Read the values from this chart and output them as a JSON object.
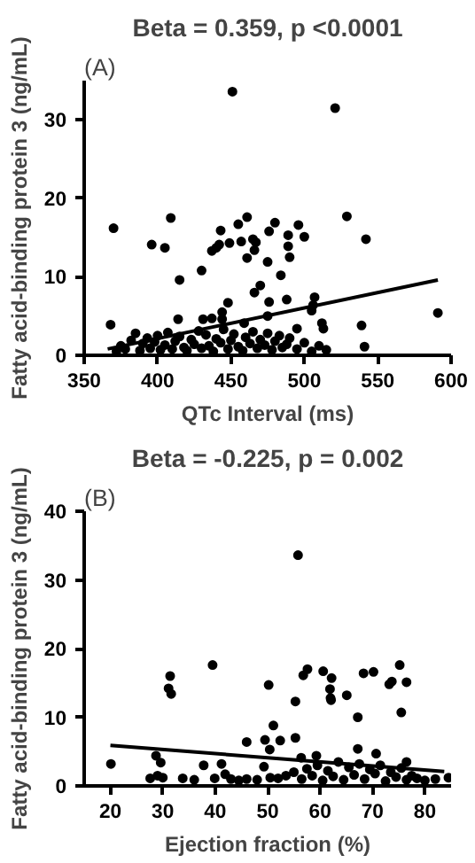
{
  "chart_data": [
    {
      "type": "scatter",
      "title": "Beta = 0.359, p <0.0001",
      "annotations": [
        "(A)"
      ],
      "xlabel": "QTc Interval (ms)",
      "ylabel": "Fatty acid-binding protein 3 (ng/mL)",
      "xlim": [
        350,
        600
      ],
      "ylim": [
        0,
        35
      ],
      "xticks": [
        350,
        400,
        450,
        500,
        550,
        600
      ],
      "yticks": [
        0,
        10,
        20,
        30
      ],
      "grid": false,
      "marker": "circle",
      "series": [
        {
          "color": "#000000",
          "x": [
            451,
            521,
            370,
            409,
            396,
            405,
            415,
            430,
            437,
            440,
            443,
            442,
            449,
            455,
            461,
            457,
            461,
            465,
            467,
            466,
            476,
            480,
            475,
            484,
            489,
            489,
            490,
            496,
            500,
            529,
            542,
            591,
            466,
            470,
            448,
            476,
            488,
            507,
            506,
            505,
            475,
            368,
            539,
            541,
            414,
            431,
            437,
            444,
            444,
            459,
            495,
            512,
            513,
            372,
            375,
            378,
            382,
            385,
            388,
            390,
            393,
            395,
            398,
            400,
            402,
            405,
            407,
            410,
            412,
            415,
            418,
            420,
            423,
            425,
            428,
            430,
            433,
            435,
            438,
            440,
            443,
            445,
            448,
            450,
            452,
            455,
            458,
            460,
            463,
            465,
            468,
            470,
            473,
            475,
            478,
            480,
            483,
            485,
            488,
            490,
            495,
            500,
            505,
            510,
            515
          ],
          "values": [
            33.6,
            31.5,
            16.2,
            17.5,
            14.1,
            13.7,
            9.6,
            10.8,
            13.3,
            13.7,
            15.9,
            14.1,
            14.3,
            16.7,
            17.6,
            14.5,
            12.4,
            14.8,
            14.4,
            13.4,
            15.8,
            16.9,
            11.9,
            10.2,
            13.9,
            15.3,
            12.5,
            16.6,
            15.1,
            17.7,
            14.8,
            5.4,
            8.0,
            8.9,
            6.7,
            6.8,
            7.1,
            7.4,
            6.4,
            5.7,
            5.0,
            3.9,
            3.8,
            1.1,
            4.6,
            4.6,
            4.7,
            5.5,
            4.6,
            4.1,
            3.4,
            4.1,
            3.4,
            0.5,
            1.2,
            0.8,
            1.9,
            2.8,
            0.6,
            1.5,
            2.2,
            0.9,
            1.7,
            2.5,
            0.7,
            1.3,
            2.9,
            0.8,
            1.8,
            2.4,
            1.0,
            0.6,
            2.0,
            1.4,
            3.1,
            0.9,
            2.6,
            1.2,
            0.5,
            2.1,
            1.6,
            3.3,
            0.8,
            1.9,
            2.7,
            1.1,
            0.6,
            2.3,
            1.5,
            3.0,
            0.9,
            2.0,
            1.3,
            2.8,
            0.7,
            1.8,
            2.5,
            1.0,
            1.4,
            2.2,
            0.8,
            1.6,
            0.5,
            1.2,
            0.7
          ]
        },
        {
          "type": "line",
          "color": "#000000",
          "marker": "none",
          "x": [
            366,
            591
          ],
          "values": [
            0.8,
            9.6
          ]
        }
      ]
    },
    {
      "type": "scatter",
      "title": "Beta = -0.225, p = 0.002",
      "annotations": [
        "(B)"
      ],
      "xlabel": "Ejection fraction (%)",
      "ylabel": "Fatty acid-binding protein 3 (ng/mL)",
      "xlim": [
        15,
        85
      ],
      "ylim": [
        0,
        40
      ],
      "xticks": [
        20,
        30,
        40,
        50,
        60,
        70,
        80
      ],
      "yticks": [
        0,
        10,
        20,
        30,
        40
      ],
      "grid": false,
      "marker": "circle",
      "series": [
        {
          "color": "#000000",
          "x": [
            55.8,
            20.1,
            28.7,
            29.6,
            31.4,
            31.1,
            31.6,
            39.5,
            37.8,
            41.2,
            50.2,
            51.1,
            46.0,
            49.5,
            52.4,
            50.4,
            55.3,
            55.3,
            56.8,
            57.6,
            60.6,
            62.2,
            61.9,
            62.0,
            62.1,
            65.1,
            67.2,
            68.3,
            70.2,
            73.2,
            73.7,
            75.2,
            76.5,
            75.5,
            67.2,
            70.7,
            59.3,
            56.4,
            76.5,
            49.3,
            27.6,
            29,
            30,
            33.8,
            36,
            39.9,
            41.9,
            43,
            44.5,
            46,
            48,
            50.5,
            52,
            53.5,
            55,
            56.5,
            57.5,
            58.5,
            59.5,
            60.5,
            61.5,
            62.5,
            63.5,
            64.5,
            65.5,
            66.5,
            67.5,
            68.5,
            69.5,
            70.5,
            71.5,
            72.5,
            73.5,
            74.5,
            75.5,
            76.5,
            77.5,
            78.5,
            80,
            82,
            84.5
          ],
          "values": [
            33.6,
            3.2,
            4.4,
            3.4,
            16.0,
            14.2,
            13.4,
            17.6,
            3.0,
            3.2,
            14.7,
            8.8,
            6.4,
            6.7,
            6.6,
            5.3,
            12.3,
            7.0,
            16.1,
            17.0,
            16.7,
            15.7,
            14.1,
            12.8,
            12.5,
            13.2,
            10.0,
            16.4,
            16.6,
            14.8,
            15.2,
            17.6,
            15.1,
            10.7,
            5.4,
            4.7,
            4.4,
            4.1,
            3.5,
            2.8,
            1.1,
            1.5,
            1.2,
            1.1,
            0.9,
            1.1,
            1.7,
            1.0,
            0.8,
            1.0,
            0.9,
            1.2,
            1.1,
            1.5,
            2.0,
            1.0,
            2.5,
            1.5,
            3.0,
            0.8,
            2.2,
            1.4,
            3.5,
            0.9,
            2.7,
            1.6,
            3.2,
            1.0,
            2.4,
            1.8,
            3.0,
            0.7,
            2.0,
            1.3,
            2.6,
            0.9,
            1.5,
            1.1,
            0.8,
            1.0,
            1.2
          ]
        },
        {
          "type": "line",
          "color": "#000000",
          "marker": "none",
          "x": [
            20,
            83.7
          ],
          "values": [
            5.9,
            2.1
          ]
        }
      ]
    }
  ]
}
